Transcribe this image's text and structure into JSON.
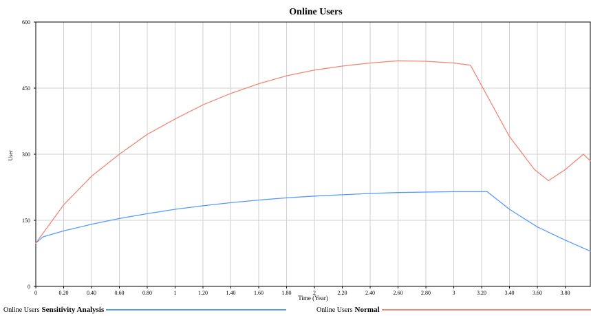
{
  "chart_data": {
    "type": "line",
    "title": "Online Users",
    "xlabel": "Time (Year)",
    "ylabel": "User",
    "xlim": [
      0,
      3.98
    ],
    "ylim": [
      0,
      600
    ],
    "x_ticks": [
      0,
      0.2,
      0.4,
      0.6,
      0.8,
      1,
      1.2,
      1.4,
      1.6,
      1.8,
      2,
      2.2,
      2.4,
      2.6,
      2.8,
      3,
      3.2,
      3.4,
      3.6,
      3.8
    ],
    "x_tick_labels": [
      "0",
      "0.20",
      "0.40",
      "0.60",
      "0.80",
      "1",
      "1.20",
      "1.40",
      "1.60",
      "1.80",
      "2",
      "2.20",
      "2.40",
      "2.60",
      "2.80",
      "3",
      "3.20",
      "3.40",
      "3.60",
      "3.80"
    ],
    "y_ticks": [
      0,
      150,
      300,
      450,
      600
    ],
    "y_tick_labels": [
      "0",
      "150",
      "300",
      "450",
      "600"
    ],
    "grid": true,
    "legend_position": "bottom",
    "legend_prefix": "Online Users",
    "series": [
      {
        "name": "Sensitivity Analysis",
        "color": "#5599ff",
        "x": [
          0,
          0.05,
          0.1,
          0.2,
          0.4,
          0.6,
          0.8,
          1.0,
          1.2,
          1.4,
          1.6,
          1.8,
          2.0,
          2.2,
          2.4,
          2.6,
          2.8,
          3.0,
          3.2,
          3.24,
          3.4,
          3.6,
          3.8,
          3.98
        ],
        "y": [
          98,
          112,
          117,
          126,
          141,
          154,
          165,
          175,
          183,
          190,
          196,
          201,
          205,
          208,
          211,
          213,
          214,
          215,
          215,
          215,
          175,
          135,
          105,
          80
        ]
      },
      {
        "name": "Normal",
        "color": "#ee8877",
        "x": [
          0,
          0.2,
          0.4,
          0.6,
          0.8,
          1.0,
          1.2,
          1.4,
          1.6,
          1.8,
          2.0,
          2.2,
          2.4,
          2.6,
          2.8,
          3.0,
          3.12,
          3.4,
          3.58,
          3.68,
          3.8,
          3.93,
          3.98
        ],
        "y": [
          98,
          185,
          250,
          300,
          345,
          380,
          412,
          438,
          460,
          478,
          491,
          500,
          507,
          512,
          511,
          507,
          502,
          340,
          265,
          240,
          265,
          300,
          285
        ]
      }
    ]
  }
}
